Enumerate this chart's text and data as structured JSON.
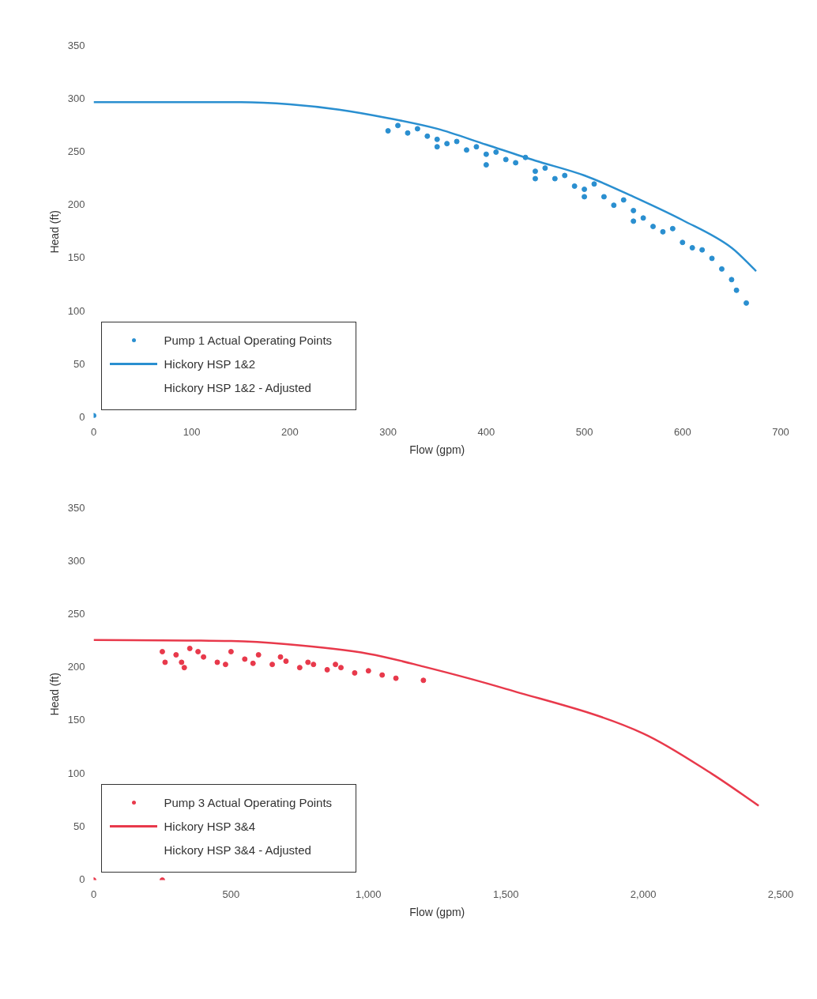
{
  "chart_data": [
    {
      "type": "line",
      "xlabel": "Flow (gpm)",
      "ylabel": "Head (ft)",
      "xlim": [
        0,
        700
      ],
      "xticks": [
        0,
        100,
        200,
        300,
        400,
        500,
        600,
        700
      ],
      "ylim": [
        0,
        350
      ],
      "yticks": [
        0,
        50,
        100,
        150,
        200,
        250,
        300,
        350
      ],
      "legend": "bottom left",
      "series": [
        {
          "name": "Pump 1 Actual Operating Points",
          "type": "scatter",
          "marker": "circle",
          "color": "#2a8fd0",
          "x": [
            0,
            300,
            310,
            320,
            330,
            340,
            350,
            350,
            360,
            370,
            380,
            390,
            400,
            400,
            410,
            420,
            430,
            440,
            450,
            450,
            460,
            470,
            480,
            490,
            500,
            500,
            510,
            520,
            530,
            540,
            550,
            550,
            560,
            570,
            580,
            590,
            600,
            610,
            620,
            630,
            640,
            650,
            655,
            665
          ],
          "values": [
            2,
            270,
            275,
            268,
            272,
            265,
            262,
            255,
            258,
            260,
            252,
            255,
            248,
            238,
            250,
            243,
            240,
            245,
            232,
            225,
            235,
            225,
            228,
            218,
            215,
            208,
            220,
            208,
            200,
            205,
            195,
            185,
            188,
            180,
            175,
            178,
            165,
            160,
            158,
            150,
            140,
            130,
            120,
            108
          ]
        },
        {
          "name": "Hickory HSP 1&2",
          "marker": "none",
          "color": "#2a8fd0",
          "x": [
            0,
            100,
            150,
            200,
            250,
            300,
            350,
            400,
            450,
            500,
            550,
            600,
            650,
            675
          ],
          "values": [
            297,
            297,
            297,
            295,
            290,
            282,
            272,
            257,
            242,
            228,
            208,
            186,
            160,
            138
          ]
        },
        {
          "name": "Hickory HSP 1&2 - Adjusted"
        }
      ]
    },
    {
      "type": "line",
      "xlabel": "Flow (gpm)",
      "ylabel": "Head (ft)",
      "xlim": [
        0,
        2500
      ],
      "xticks": [
        0,
        {
          "value": 500,
          "label": "500"
        },
        {
          "value": 1000,
          "label": "1,000"
        },
        {
          "value": 1500,
          "label": "1,500"
        },
        {
          "value": 2000,
          "label": "2,000"
        },
        {
          "value": 2500,
          "label": "2,500"
        }
      ],
      "ylim": [
        0,
        350
      ],
      "yticks": [
        0,
        50,
        100,
        150,
        200,
        250,
        300,
        350
      ],
      "legend": "bottom left",
      "series": [
        {
          "name": "Pump 3 Actual Operating Points",
          "type": "scatter",
          "marker": "circle",
          "color": "#e8394b",
          "x": [
            0,
            250,
            250,
            260,
            300,
            320,
            330,
            350,
            380,
            400,
            450,
            480,
            500,
            550,
            580,
            600,
            650,
            680,
            700,
            750,
            780,
            800,
            850,
            880,
            900,
            950,
            1000,
            1050,
            1100,
            1200
          ],
          "values": [
            0,
            0,
            215,
            205,
            212,
            205,
            200,
            218,
            215,
            210,
            205,
            203,
            215,
            208,
            204,
            212,
            203,
            210,
            206,
            200,
            205,
            203,
            198,
            203,
            200,
            195,
            197,
            193,
            190,
            188
          ]
        },
        {
          "name": "Hickory HSP 3&4",
          "marker": "none",
          "color": "#e8394b",
          "x": [
            0,
            500,
            700,
            1000,
            1200,
            1500,
            2000,
            2250,
            2420
          ],
          "values": [
            226,
            225,
            222,
            213,
            201,
            180,
            138,
            100,
            70
          ]
        },
        {
          "name": "Hickory HSP 3&4 - Adjusted"
        }
      ]
    }
  ]
}
